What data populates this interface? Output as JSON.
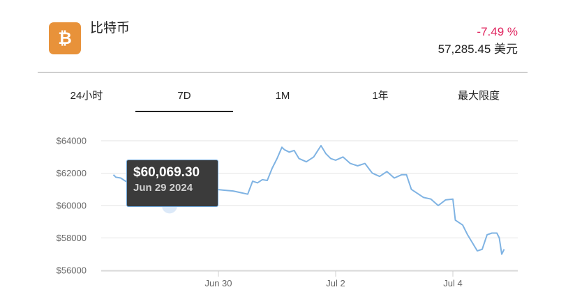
{
  "coin": {
    "name": "比特币",
    "logo_icon": "bitcoin-icon",
    "logo_color": "#e8923a",
    "change": "-7.49 %",
    "change_color": "#e0245e",
    "price": "57,285.45 美元"
  },
  "tabs": [
    {
      "label": "24小时",
      "active": false
    },
    {
      "label": "7D",
      "active": true
    },
    {
      "label": "1M",
      "active": false
    },
    {
      "label": "1年",
      "active": false
    },
    {
      "label": "最大限度",
      "active": false
    }
  ],
  "tooltip": {
    "value": "$60,069.30",
    "date": "Jun 29 2024"
  },
  "chart_data": {
    "type": "line",
    "title": "",
    "xlabel": "",
    "ylabel": "",
    "ylim": [
      55900,
      65000
    ],
    "y_ticks": [
      "$64000",
      "$62000",
      "$60000",
      "$58000",
      "$56000"
    ],
    "x_ticks": [
      "Jun 30",
      "Jul 2",
      "Jul 4"
    ],
    "line_color": "#7fb3e3",
    "grid": true,
    "series": [
      {
        "x": [
          "2024-06-28 05:00",
          "2024-06-28 06:00",
          "2024-06-28 08:00",
          "2024-06-28 10:00",
          "2024-06-28 12:00",
          "2024-06-28 14:00",
          "2024-06-28 16:00",
          "2024-06-28 18:00",
          "2024-06-28 20:00",
          "2024-06-28 23:00",
          "2024-06-29 02:00",
          "2024-06-29 04:00",
          "2024-06-29 06:00",
          "2024-06-29 08:00",
          "2024-06-29 11:00",
          "2024-06-29 14:00",
          "2024-06-29 17:00",
          "2024-06-29 20:00",
          "2024-06-29 23:00",
          "2024-06-30 02:00",
          "2024-06-30 06:00",
          "2024-06-30 09:00",
          "2024-06-30 12:00",
          "2024-06-30 14:00",
          "2024-06-30 16:00",
          "2024-06-30 18:00",
          "2024-06-30 20:00",
          "2024-06-30 22:00",
          "2024-07-01 00:00",
          "2024-07-01 02:00",
          "2024-07-01 03:00",
          "2024-07-01 05:00",
          "2024-07-01 07:00",
          "2024-07-01 09:00",
          "2024-07-01 12:00",
          "2024-07-01 15:00",
          "2024-07-01 18:00",
          "2024-07-01 20:00",
          "2024-07-01 22:00",
          "2024-07-02 00:00",
          "2024-07-02 03:00",
          "2024-07-02 06:00",
          "2024-07-02 09:00",
          "2024-07-02 12:00",
          "2024-07-02 15:00",
          "2024-07-02 18:00",
          "2024-07-02 21:00",
          "2024-07-03 00:00",
          "2024-07-03 03:00",
          "2024-07-03 05:00",
          "2024-07-03 07:00",
          "2024-07-03 09:00",
          "2024-07-03 12:00",
          "2024-07-03 15:00",
          "2024-07-03 18:00",
          "2024-07-03 21:00",
          "2024-07-04 00:00",
          "2024-07-04 01:00",
          "2024-07-04 02:00",
          "2024-07-04 04:00",
          "2024-07-04 06:00",
          "2024-07-04 08:00",
          "2024-07-04 10:00",
          "2024-07-04 12:00",
          "2024-07-04 14:00",
          "2024-07-04 16:00",
          "2024-07-04 18:00",
          "2024-07-04 19:00",
          "2024-07-04 20:00",
          "2024-07-04 21:00"
        ],
        "values": [
          61900,
          61750,
          61700,
          61500,
          61450,
          61350,
          61300,
          61600,
          61700,
          61300,
          61100,
          60069,
          60200,
          60500,
          60700,
          60800,
          60900,
          60900,
          61000,
          60950,
          60900,
          60800,
          60700,
          61500,
          61400,
          61600,
          61550,
          62300,
          62900,
          63600,
          63450,
          63300,
          63400,
          62900,
          62700,
          63000,
          63700,
          63200,
          62900,
          62800,
          63000,
          62600,
          62450,
          62600,
          62000,
          61800,
          62100,
          61700,
          61900,
          61900,
          61000,
          60800,
          60500,
          60400,
          60000,
          60350,
          60400,
          59100,
          59000,
          58800,
          58200,
          57700,
          57200,
          57300,
          58200,
          58300,
          58300,
          58000,
          57000,
          57300
        ]
      }
    ]
  }
}
